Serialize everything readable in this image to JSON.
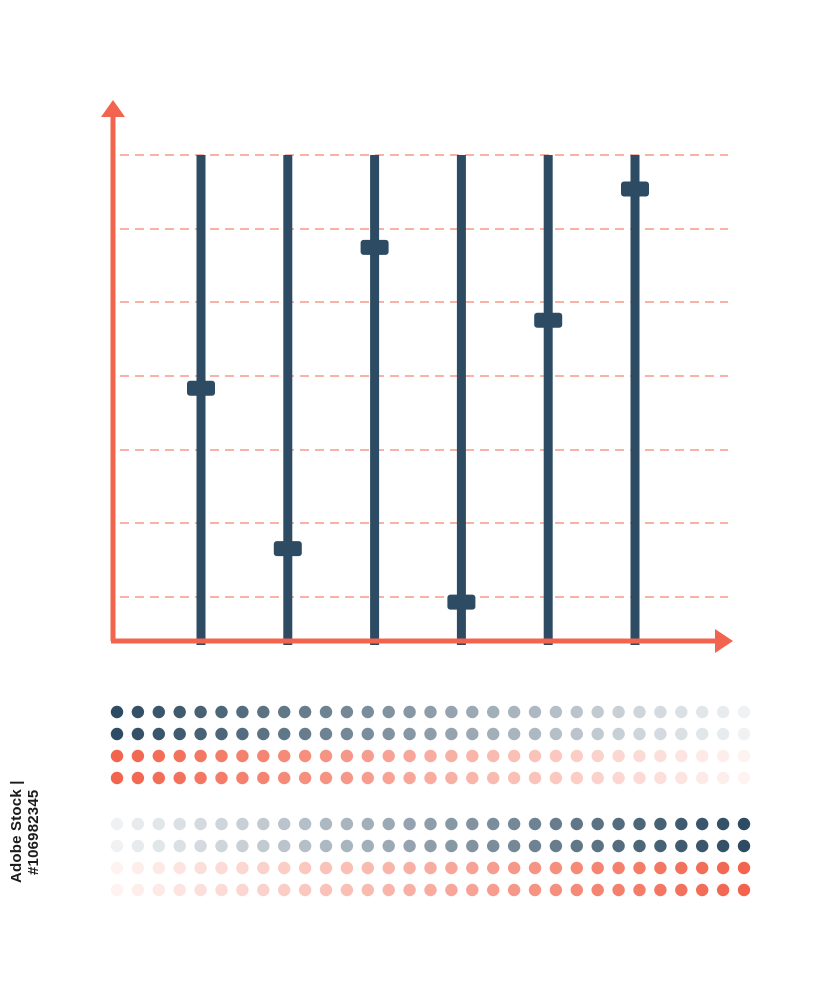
{
  "chart_data": {
    "type": "scatter",
    "title": "",
    "xlabel": "",
    "ylabel": "",
    "grid": true,
    "ylim": [
      0,
      1
    ],
    "x": [
      1,
      2,
      3,
      4,
      5,
      6
    ],
    "values": [
      0.52,
      0.19,
      0.81,
      0.08,
      0.66,
      0.93
    ]
  },
  "dot_bands": [
    {
      "rows": [
        {
          "color": "#2d4b62",
          "direction": "fade-right"
        },
        {
          "color": "#2d4b62",
          "direction": "fade-right"
        },
        {
          "color": "#f2644d",
          "direction": "fade-right"
        },
        {
          "color": "#f2644d",
          "direction": "fade-right"
        }
      ]
    },
    {
      "rows": [
        {
          "color": "#2d4b62",
          "direction": "fade-left"
        },
        {
          "color": "#2d4b62",
          "direction": "fade-left"
        },
        {
          "color": "#f2644d",
          "direction": "fade-left"
        },
        {
          "color": "#f2644d",
          "direction": "fade-left"
        }
      ]
    }
  ],
  "colors": {
    "axis": "#f2644d",
    "grid": "#f2644d",
    "slider": "#2d4b62"
  },
  "watermark": {
    "text": "Adobe Stock | #106982345"
  }
}
